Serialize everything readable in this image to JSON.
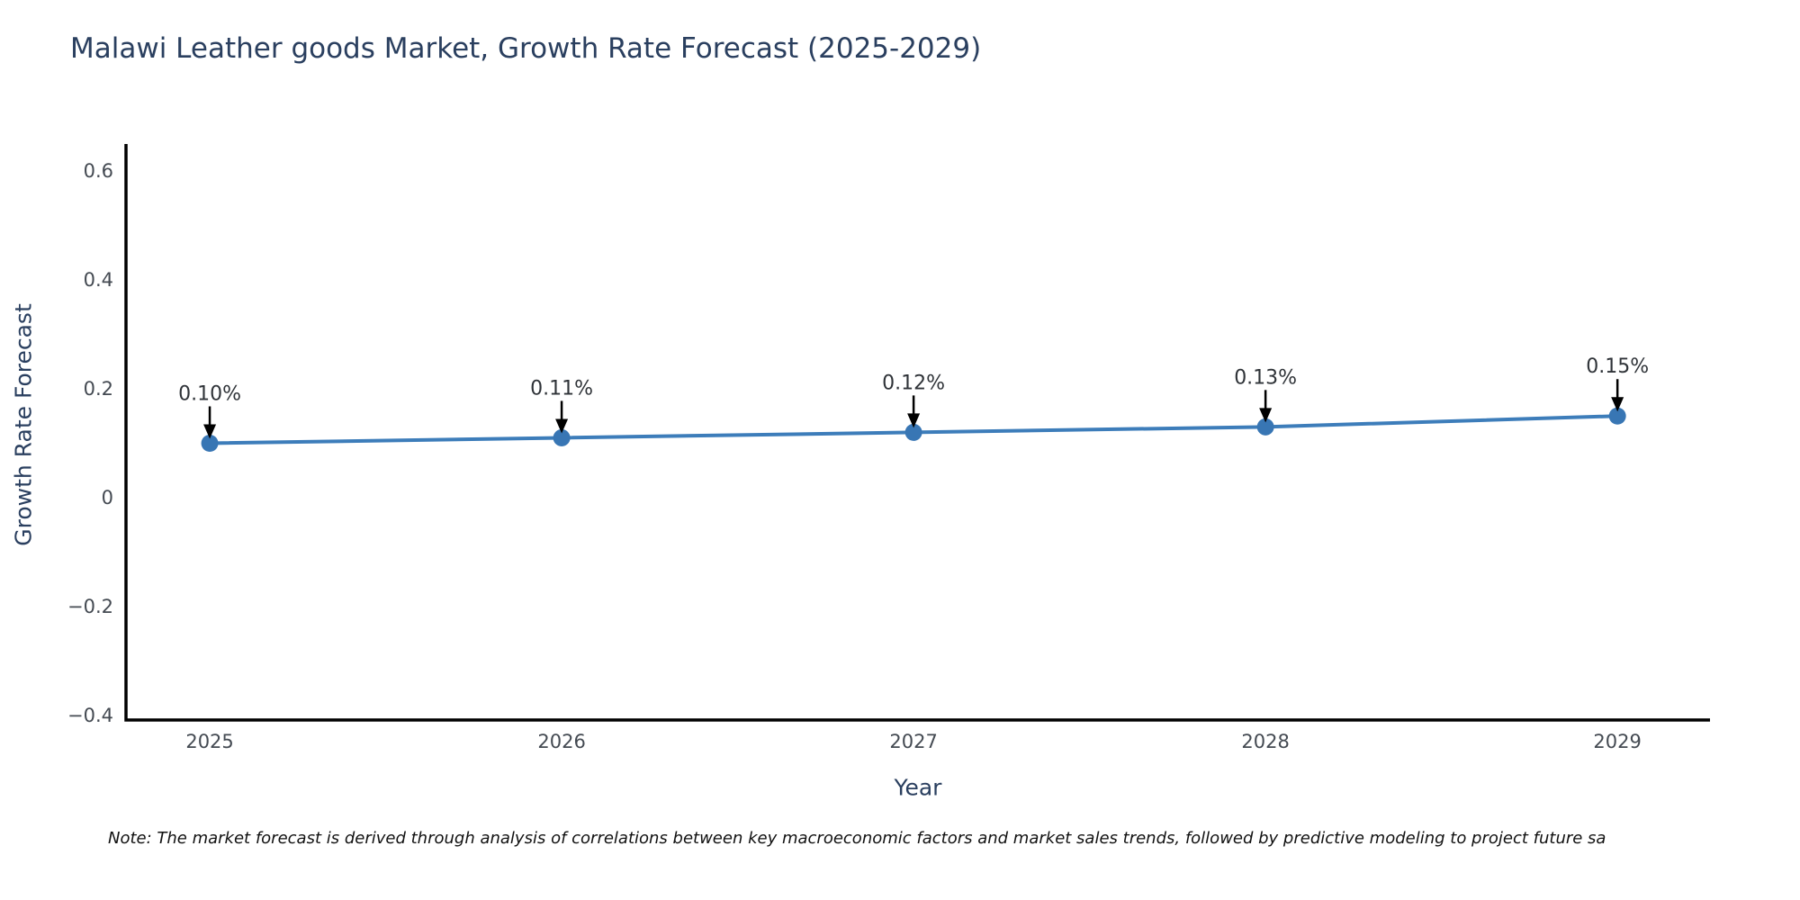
{
  "chart": {
    "colors": {
      "line": "#3d7dba",
      "marker": "#3876b4",
      "axis_line": "#000000",
      "title_text": "#2a3f5f",
      "axis_title_text": "#2a3f5f",
      "tick_text": "#444a52",
      "annotation_text": "#2f3338",
      "arrow": "#000000",
      "note_text": "#111111",
      "background": "#ffffff"
    }
  },
  "chart_data": {
    "type": "line",
    "title": "Malawi Leather goods Market, Growth Rate Forecast (2025-2029)",
    "xlabel": "Year",
    "ylabel": "Growth Rate Forecast",
    "x": [
      2025,
      2026,
      2027,
      2028,
      2029
    ],
    "values": [
      0.1,
      0.11,
      0.12,
      0.13,
      0.15
    ],
    "point_labels": [
      "0.10%",
      "0.11%",
      "0.12%",
      "0.13%",
      "0.15%"
    ],
    "x_tick_labels": [
      "2025",
      "2026",
      "2027",
      "2028",
      "2029"
    ],
    "y_ticks": [
      0.6,
      0.4,
      0.2,
      0,
      -0.2,
      -0.4
    ],
    "y_tick_labels": [
      "0.6",
      "0.4",
      "0.2",
      "0",
      "−0.2",
      "−0.4"
    ],
    "xlim": [
      2024.762,
      2029.263
    ],
    "ylim": [
      -0.4083,
      0.6496
    ],
    "grid": false,
    "legend": "none",
    "annotations": "black downward arrows from each value label to its data point",
    "note": "Note: The market forecast is derived through analysis of correlations between key macroeconomic factors and market sales trends, followed by predictive modeling to project future sa"
  }
}
